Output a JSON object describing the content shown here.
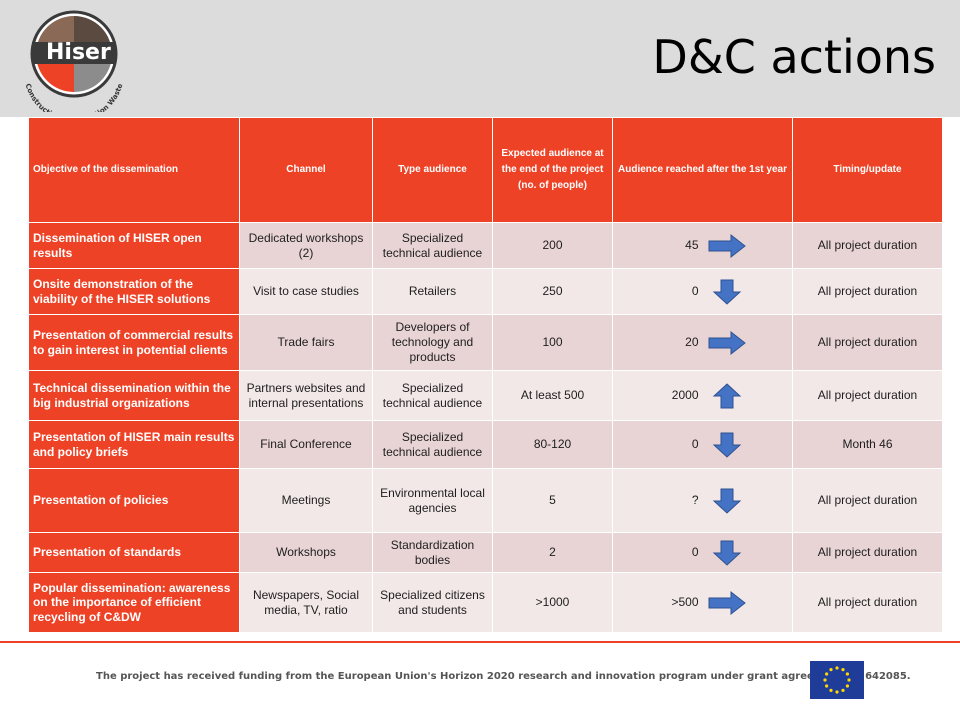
{
  "header": {
    "title": "D&C actions",
    "logo_name": "Hiser",
    "logo_subtitle": "Construction & Demolition Waste"
  },
  "table": {
    "headers": [
      "Objective of the dissemination",
      "Channel",
      "Type audience",
      "Expected audience at the end of the project (no. of people)",
      "Audience reached after the 1st year",
      "Timing/update"
    ],
    "rows": [
      {
        "objective": "Dissemination of HISER open results",
        "channel": "Dedicated workshops (2)",
        "audience": "Specialized technical audience",
        "expected": "200",
        "reached": "45",
        "trend": "right",
        "timing": "All project duration"
      },
      {
        "objective": "Onsite demonstration of the viability of the HISER solutions",
        "channel": "Visit to case studies",
        "audience": "Retailers",
        "expected": "250",
        "reached": "0",
        "trend": "down",
        "timing": "All project duration"
      },
      {
        "objective": "Presentation of commercial results to gain interest in potential clients",
        "channel": "Trade fairs",
        "audience": "Developers of technology and products",
        "expected": "100",
        "reached": "20",
        "trend": "right",
        "timing": "All project duration"
      },
      {
        "objective": "Technical dissemination within the big industrial organizations",
        "channel": "Partners websites and internal presentations",
        "audience": "Specialized technical audience",
        "expected": "At least 500",
        "reached": "2000",
        "trend": "up",
        "timing": "All project duration"
      },
      {
        "objective": "Presentation of HISER main results and policy briefs",
        "channel": "Final Conference",
        "audience": "Specialized technical audience",
        "expected": "80-120",
        "reached": "0",
        "trend": "down",
        "timing": "Month 46"
      },
      {
        "objective": "Presentation of policies",
        "channel": "Meetings",
        "audience": "Environmental local agencies",
        "expected": "5",
        "reached": "?",
        "trend": "down",
        "timing": "All project duration"
      },
      {
        "objective": "Presentation of standards",
        "channel": "Workshops",
        "audience": "Standardization bodies",
        "expected": "2",
        "reached": "0",
        "trend": "down",
        "timing": "All project duration"
      },
      {
        "objective": "Popular dissemination: awareness on the importance of efficient recycling of C&DW",
        "channel": "Newspapers, Social media, TV, ratio",
        "audience": "Specialized citizens and students",
        "expected": ">1000",
        "reached": ">500",
        "trend": "right",
        "timing": "All project duration"
      }
    ]
  },
  "footer": {
    "funding_text": "The project has received funding from the European Union's Horizon 2020 research and innovation program under grant agreement No 642085."
  },
  "colors": {
    "accent_red": "#ee4226",
    "arrow_blue": "#4472c4",
    "header_gray": "#dcdcdc"
  }
}
